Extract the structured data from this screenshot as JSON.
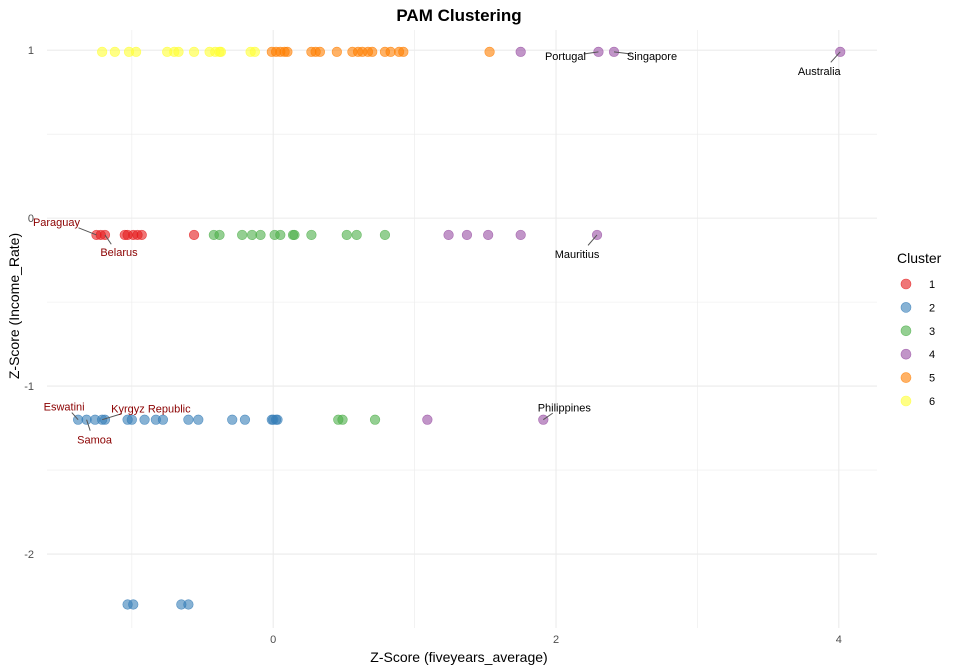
{
  "chart_data": {
    "type": "scatter",
    "title": "PAM Clustering",
    "xlabel": "Z-Score (fiveyears_average)",
    "ylabel": "Z-Score (Income_Rate)",
    "xlim": [
      -1.6,
      4.27
    ],
    "ylim": [
      -2.44,
      1.12
    ],
    "xticks": [
      0,
      2,
      4
    ],
    "yticks": [
      -2,
      -1,
      0,
      1
    ],
    "grid": true,
    "legend": {
      "title": "Cluster",
      "position": "right",
      "entries": [
        "1",
        "2",
        "3",
        "4",
        "5",
        "6"
      ]
    },
    "colors": {
      "1": "#E41A1C",
      "2": "#377EB8",
      "3": "#4DAF4A",
      "4": "#984EA3",
      "5": "#FF7F00",
      "6": "#FFFF33"
    },
    "series": [
      {
        "name": "1",
        "points": [
          [
            -1.25,
            -0.1
          ],
          [
            -1.22,
            -0.1
          ],
          [
            -1.19,
            -0.1
          ],
          [
            -1.05,
            -0.1
          ],
          [
            -1.03,
            -0.1
          ],
          [
            -0.99,
            -0.1
          ],
          [
            -0.96,
            -0.1
          ],
          [
            -0.93,
            -0.1
          ],
          [
            -0.56,
            -0.1
          ]
        ]
      },
      {
        "name": "2",
        "points": [
          [
            -1.38,
            -1.2
          ],
          [
            -1.32,
            -1.2
          ],
          [
            -1.26,
            -1.2
          ],
          [
            -1.21,
            -1.2
          ],
          [
            -1.19,
            -1.2
          ],
          [
            -1.03,
            -1.2
          ],
          [
            -1.0,
            -1.2
          ],
          [
            -0.91,
            -1.2
          ],
          [
            -0.83,
            -1.2
          ],
          [
            -0.78,
            -1.2
          ],
          [
            -0.6,
            -1.2
          ],
          [
            -0.53,
            -1.2
          ],
          [
            -0.29,
            -1.2
          ],
          [
            -0.2,
            -1.2
          ],
          [
            -0.01,
            -1.2
          ],
          [
            0.0,
            -1.2
          ],
          [
            0.02,
            -1.2
          ],
          [
            0.03,
            -1.2
          ],
          [
            -1.03,
            -2.3
          ],
          [
            -0.99,
            -2.3
          ],
          [
            -0.65,
            -2.3
          ],
          [
            -0.6,
            -2.3
          ]
        ]
      },
      {
        "name": "3",
        "points": [
          [
            -0.42,
            -0.1
          ],
          [
            -0.38,
            -0.1
          ],
          [
            -0.22,
            -0.1
          ],
          [
            -0.15,
            -0.1
          ],
          [
            -0.09,
            -0.1
          ],
          [
            0.01,
            -0.1
          ],
          [
            0.05,
            -0.1
          ],
          [
            0.14,
            -0.1
          ],
          [
            0.15,
            -0.1
          ],
          [
            0.27,
            -0.1
          ],
          [
            0.52,
            -0.1
          ],
          [
            0.59,
            -0.1
          ],
          [
            0.79,
            -0.1
          ],
          [
            0.46,
            -1.2
          ],
          [
            0.49,
            -1.2
          ],
          [
            0.72,
            -1.2
          ]
        ]
      },
      {
        "name": "4",
        "points": [
          [
            1.24,
            -0.1
          ],
          [
            1.37,
            -0.1
          ],
          [
            1.52,
            -0.1
          ],
          [
            1.75,
            -0.1
          ],
          [
            2.29,
            -0.1
          ],
          [
            1.75,
            0.99
          ],
          [
            2.3,
            0.99
          ],
          [
            2.41,
            0.99
          ],
          [
            4.01,
            0.99
          ],
          [
            1.09,
            -1.2
          ],
          [
            1.91,
            -1.2
          ]
        ]
      },
      {
        "name": "5",
        "points": [
          [
            -0.01,
            0.99
          ],
          [
            0.02,
            0.99
          ],
          [
            0.05,
            0.99
          ],
          [
            0.08,
            0.99
          ],
          [
            0.1,
            0.99
          ],
          [
            0.27,
            0.99
          ],
          [
            0.3,
            0.99
          ],
          [
            0.33,
            0.99
          ],
          [
            0.45,
            0.99
          ],
          [
            0.56,
            0.99
          ],
          [
            0.6,
            0.99
          ],
          [
            0.63,
            0.99
          ],
          [
            0.67,
            0.99
          ],
          [
            0.7,
            0.99
          ],
          [
            0.79,
            0.99
          ],
          [
            0.83,
            0.99
          ],
          [
            0.89,
            0.99
          ],
          [
            0.92,
            0.99
          ],
          [
            1.53,
            0.99
          ]
        ]
      },
      {
        "name": "6",
        "points": [
          [
            -1.21,
            0.99
          ],
          [
            -1.12,
            0.99
          ],
          [
            -1.02,
            0.99
          ],
          [
            -0.97,
            0.99
          ],
          [
            -0.75,
            0.99
          ],
          [
            -0.7,
            0.99
          ],
          [
            -0.67,
            0.99
          ],
          [
            -0.56,
            0.99
          ],
          [
            -0.45,
            0.99
          ],
          [
            -0.41,
            0.99
          ],
          [
            -0.38,
            0.99
          ],
          [
            -0.37,
            0.99
          ],
          [
            -0.16,
            0.99
          ],
          [
            -0.13,
            0.99
          ]
        ]
      }
    ],
    "annotations": [
      {
        "label": "Paraguay",
        "x": -1.25,
        "y": -0.1,
        "color": "#8B0000"
      },
      {
        "label": "Belarus",
        "x": -1.19,
        "y": -0.1,
        "color": "#8B0000"
      },
      {
        "label": "Eswatini",
        "x": -1.38,
        "y": -1.2,
        "color": "#8B0000"
      },
      {
        "label": "Kyrgyz Republic",
        "x": -1.21,
        "y": -1.2,
        "color": "#8B0000"
      },
      {
        "label": "Samoa",
        "x": -1.32,
        "y": -1.2,
        "color": "#8B0000"
      },
      {
        "label": "Portugal",
        "x": 2.3,
        "y": 0.99,
        "color": "#000000"
      },
      {
        "label": "Singapore",
        "x": 2.41,
        "y": 0.99,
        "color": "#000000"
      },
      {
        "label": "Australia",
        "x": 4.01,
        "y": 0.99,
        "color": "#000000"
      },
      {
        "label": "Mauritius",
        "x": 2.29,
        "y": -0.1,
        "color": "#000000"
      },
      {
        "label": "Philippines",
        "x": 1.91,
        "y": -1.2,
        "color": "#000000"
      }
    ]
  }
}
